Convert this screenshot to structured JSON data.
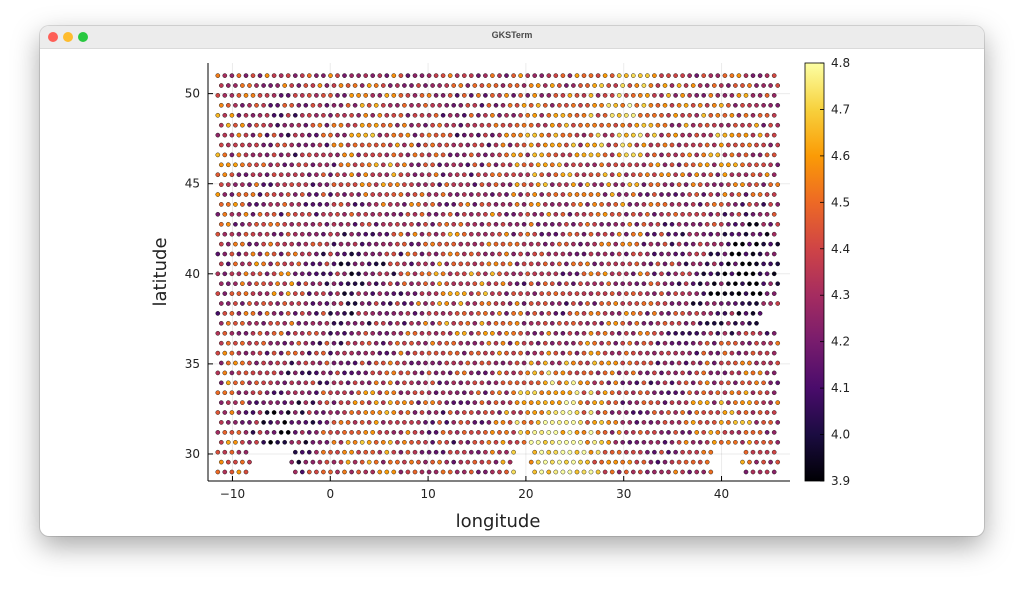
{
  "window": {
    "title": "GKSTerm"
  },
  "chart_data": {
    "type": "scatter",
    "xlabel": "longitude",
    "ylabel": "latitude",
    "xlim": [
      -12.5,
      47
    ],
    "ylim": [
      28.5,
      51.7
    ],
    "xticks": [
      -10,
      0,
      10,
      20,
      30,
      40
    ],
    "yticks": [
      30,
      35,
      40,
      45,
      50
    ],
    "grid": true,
    "legend": "none",
    "colorbar": {
      "position": "right",
      "min": 3.9,
      "max": 4.8,
      "ticks": [
        "3.9",
        "4.0",
        "4.1",
        "4.2",
        "4.3",
        "4.4",
        "4.5",
        "4.6",
        "4.7",
        "4.8"
      ],
      "colormap": "inferno",
      "stops": [
        "#000004",
        "#1b0c41",
        "#4a0c6b",
        "#781c6d",
        "#a52c60",
        "#cf4446",
        "#ed6925",
        "#fb9b06",
        "#f7d13d",
        "#fcffa4"
      ]
    },
    "data_extent": {
      "lon_min": -11.5,
      "lon_max": 46,
      "lat_min": 29,
      "lat_max": 51
    },
    "value_regions": [
      {
        "lon": 43.5,
        "lat": 40.5,
        "value": 3.95,
        "radius": 3
      },
      {
        "lon": 24,
        "lat": 29.6,
        "value": 4.75,
        "radius": 5
      },
      {
        "lon": 31,
        "lat": 48,
        "value": 4.7,
        "radius": 4
      },
      {
        "lon": -5,
        "lat": 31.5,
        "value": 4.15,
        "radius": 3
      },
      {
        "lon": 0,
        "lat": 40,
        "value": 4.2,
        "radius": 6
      },
      {
        "lon": 35,
        "lat": 40,
        "value": 4.2,
        "radius": 6
      }
    ]
  }
}
